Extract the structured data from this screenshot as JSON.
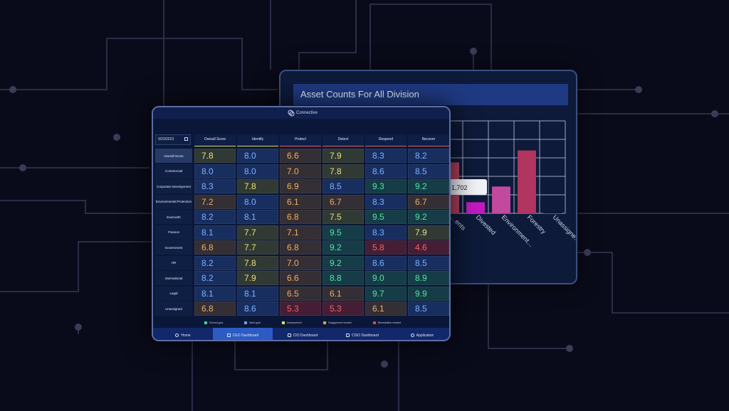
{
  "back_panel": {
    "title": "Asset Counts For All Division",
    "tooltip_value": "1,702",
    "chart_data": {
      "type": "bar",
      "categories": [
        "…ents",
        "Divested",
        "Environment…",
        "Forestry",
        "Unassigne…"
      ],
      "values": [
        0.55,
        0.12,
        0.29,
        0.68,
        0.01
      ],
      "bar_colors": [
        "#b3415e",
        "#c21ac2",
        "#c24a9e",
        "#b0355f",
        "#0d1a3a"
      ],
      "ylim": [
        0,
        1
      ]
    }
  },
  "dashboard": {
    "logo_text": "Connective",
    "date": "9/20/2023",
    "columns": [
      "Overall Score",
      "Identify",
      "Protect",
      "Detect",
      "Respond",
      "Recover"
    ],
    "rows": [
      {
        "label": "Overall Score",
        "values": [
          "7.8",
          "8.0",
          "6.6",
          "7.9",
          "8.3",
          "8.2"
        ]
      },
      {
        "label": "Commercial",
        "values": [
          "8.0",
          "8.0",
          "7.0",
          "7.8",
          "8.6",
          "8.5"
        ]
      },
      {
        "label": "Corporate Development",
        "values": [
          "8.3",
          "7.8",
          "6.9",
          "8.5",
          "9.3",
          "9.2"
        ]
      },
      {
        "label": "Environmental Protection",
        "values": [
          "7.2",
          "8.0",
          "6.1",
          "6.7",
          "8.3",
          "6.7"
        ]
      },
      {
        "label": "Evernorth",
        "values": [
          "8.2",
          "8.1",
          "6.8",
          "7.5",
          "9.5",
          "9.2"
        ]
      },
      {
        "label": "Finance",
        "values": [
          "8.1",
          "7.7",
          "7.1",
          "9.5",
          "8.3",
          "7.9"
        ]
      },
      {
        "label": "Government",
        "values": [
          "6.8",
          "7.7",
          "6.8",
          "9.2",
          "5.8",
          "4.6"
        ]
      },
      {
        "label": "HR",
        "values": [
          "8.2",
          "7.8",
          "7.0",
          "9.2",
          "8.6",
          "8.5"
        ]
      },
      {
        "label": "International",
        "values": [
          "8.2",
          "7.9",
          "6.6",
          "8.8",
          "9.0",
          "8.9"
        ]
      },
      {
        "label": "Legal",
        "values": [
          "8.1",
          "8.1",
          "6.5",
          "6.1",
          "9.7",
          "9.9"
        ]
      },
      {
        "label": "Unassigned",
        "values": [
          "6.8",
          "8.6",
          "5.3",
          "5.3",
          "6.1",
          "8.5"
        ]
      }
    ],
    "legend": [
      {
        "label": "Exceed goal",
        "color": "#3fd39a"
      },
      {
        "label": "Meet goal",
        "color": "#6b9ff0"
      },
      {
        "label": "Underperform",
        "color": "#d8e06a"
      },
      {
        "label": "Engagement needed",
        "color": "#e0a040"
      },
      {
        "label": "Remediation needed",
        "color": "#e04848"
      }
    ],
    "nav": [
      {
        "label": "Home",
        "icon": "home-icon"
      },
      {
        "label": "CEO Dashboard",
        "icon": "grid-icon"
      },
      {
        "label": "CIO Dashboard",
        "icon": "grid-icon"
      },
      {
        "label": "CISO Dashboard",
        "icon": "grid-icon"
      },
      {
        "label": "Application",
        "icon": "shield-icon"
      }
    ]
  }
}
